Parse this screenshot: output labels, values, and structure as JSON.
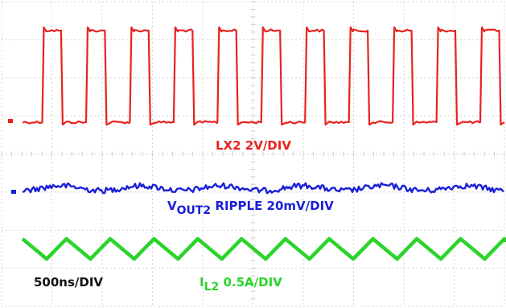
{
  "chart_data": {
    "type": "line",
    "title": "",
    "timebase_label": "500ns/DIV",
    "grid": true,
    "grid_divisions": {
      "x": 10,
      "y": 8
    },
    "series": [
      {
        "name": "LX2",
        "scale": "2V/DIV",
        "color": "#e8221f",
        "waveform": "square",
        "cycles": 11,
        "duty": 0.3,
        "high_level_div": 6.6,
        "low_level_div": 4.8,
        "label": {
          "text": "LX2",
          "sub": "",
          "rest": " 2V/DIV"
        }
      },
      {
        "name": "VOUT2 RIPPLE",
        "scale": "20mV/DIV",
        "color": "#1a1fd6",
        "waveform": "noise",
        "level_div": 3.7,
        "label": {
          "text": "V",
          "sub": "OUT2",
          "rest": " RIPPLE 20mV/DIV"
        }
      },
      {
        "name": "IL2",
        "scale": "0.5A/DIV",
        "color": "#2bd42b",
        "waveform": "triangle",
        "cycles": 11,
        "peak_div": 1.9,
        "valley_div": 1.3,
        "label": {
          "text": "I",
          "sub": "L2",
          "rest": " 0.5A/DIV"
        }
      }
    ]
  }
}
